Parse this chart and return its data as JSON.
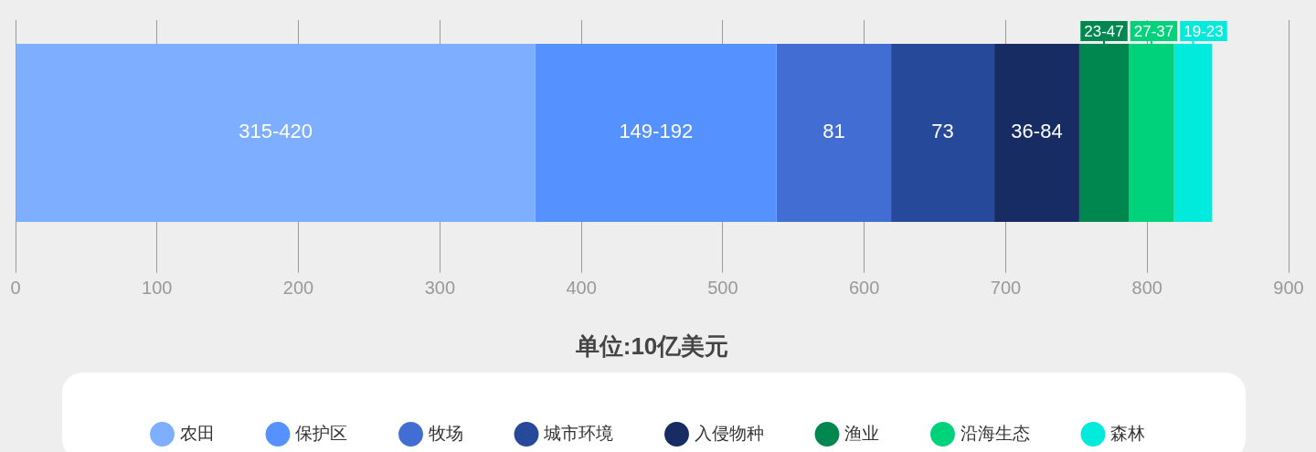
{
  "chart_data": {
    "type": "bar",
    "orientation": "horizontal",
    "stacked": true,
    "xlabel": "单位:10亿美元",
    "categories": [
      null
    ],
    "series": [
      {
        "name": "农田",
        "color": "#7eaeff",
        "values": [
          367.5
        ],
        "value_labels": [
          "315-420"
        ]
      },
      {
        "name": "保护区",
        "color": "#5592ff",
        "values": [
          170.5
        ],
        "value_labels": [
          "149-192"
        ]
      },
      {
        "name": "牧场",
        "color": "#426dd3",
        "values": [
          81
        ],
        "value_labels": [
          "81"
        ]
      },
      {
        "name": "城市环境",
        "color": "#26499a",
        "values": [
          73
        ],
        "value_labels": [
          "73"
        ]
      },
      {
        "name": "入侵物种",
        "color": "#162c62",
        "values": [
          60
        ],
        "value_labels": [
          "36-84"
        ]
      },
      {
        "name": "渔业",
        "color": "#00874f",
        "values": [
          35
        ],
        "value_labels": [
          "23-47"
        ]
      },
      {
        "name": "沿海生态",
        "color": "#00d27c",
        "values": [
          32
        ],
        "value_labels": [
          "27-37"
        ]
      },
      {
        "name": "森林",
        "color": "#00ebdc",
        "values": [
          27
        ],
        "value_labels": [
          "19-23"
        ]
      }
    ],
    "xlim": [
      0,
      900
    ],
    "xticks": [
      0,
      100,
      200,
      300,
      400,
      500,
      600,
      700,
      800,
      900
    ],
    "grid": "x",
    "legend": "bottom"
  }
}
